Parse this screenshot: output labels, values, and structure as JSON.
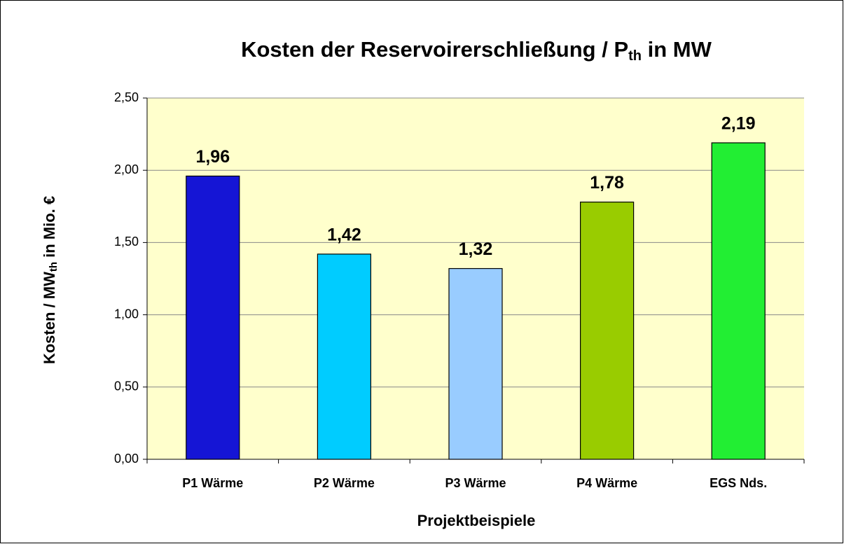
{
  "chart_data": {
    "type": "bar",
    "title": [
      "Kosten der Reservoirerschließung / P",
      "th",
      " in MW"
    ],
    "ylabel": [
      "Kosten / MW",
      "th",
      " in Mio. €"
    ],
    "xlabel": "Projektbeispiele",
    "categories": [
      "P1 Wärme",
      "P2 Wärme",
      "P3 Wärme",
      "P4 Wärme",
      "EGS Nds."
    ],
    "values": [
      1.96,
      1.42,
      1.32,
      1.78,
      2.19
    ],
    "value_labels": [
      "1,96",
      "1,42",
      "1,32",
      "1,78",
      "2,19"
    ],
    "colors": [
      "#1515d5",
      "#00ccff",
      "#99ccff",
      "#99cc00",
      "#22ee33"
    ],
    "ylim": [
      0,
      2.5
    ],
    "yticks": [
      {
        "value": 0,
        "label": "0,00"
      },
      {
        "value": 0.5,
        "label": "0,50"
      },
      {
        "value": 1,
        "label": "1,00"
      },
      {
        "value": 1.5,
        "label": "1,50"
      },
      {
        "value": 2,
        "label": "2,00"
      },
      {
        "value": 2.5,
        "label": "2,50"
      }
    ],
    "grid": true
  }
}
